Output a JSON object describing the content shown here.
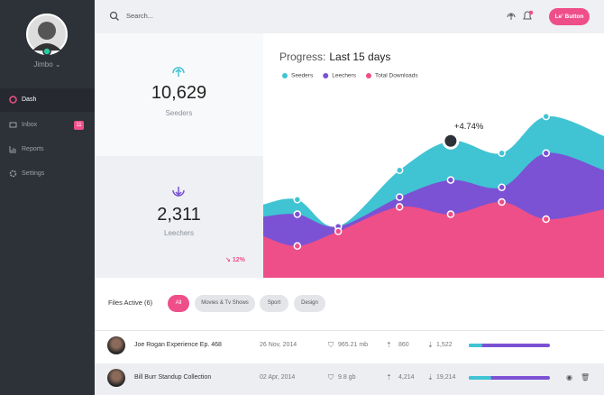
{
  "sidebar": {
    "user": "Jimbo",
    "nav": [
      {
        "label": "Dash"
      },
      {
        "label": "Inbox",
        "badge": "11"
      },
      {
        "label": "Reports"
      },
      {
        "label": "Settings"
      }
    ]
  },
  "topbar": {
    "search": "Search...",
    "button": "Le' Button"
  },
  "stats": [
    {
      "value": "10,629",
      "label": "Seeders"
    },
    {
      "value": "2,311",
      "label": "Leechers",
      "change": "12%"
    }
  ],
  "chart_data": {
    "type": "area",
    "title": "Progress:",
    "subtitle": "Last 15 days",
    "x": [
      0,
      10,
      22,
      40,
      55,
      70,
      83,
      100
    ],
    "xlim": [
      0,
      100
    ],
    "ylim": [
      0,
      100
    ],
    "series": [
      {
        "name": "Seeders",
        "color": "#40c4d3",
        "values": [
          30,
          32,
          21,
          44,
          56,
          51,
          66,
          58
        ]
      },
      {
        "name": "Leechers",
        "color": "#7b52d4",
        "values": [
          25,
          26,
          21,
          33,
          40,
          37,
          51,
          44
        ]
      },
      {
        "name": "Total Downloads",
        "color": "#ee4f88",
        "values": [
          17,
          13,
          19,
          29,
          26,
          31,
          24,
          28
        ]
      }
    ],
    "annotation": {
      "text": "+4.74%",
      "x": 55
    }
  },
  "files": {
    "title": "Files Active (6)",
    "filters": [
      "All",
      "Movies & Tv Shows",
      "Sport",
      "Design"
    ],
    "rows": [
      {
        "name": "Joe Rogan Experience Ep. 468",
        "date": "26 Nov, 2014",
        "size": "965.21 mb",
        "up": "860",
        "down": "1,522",
        "progress": 17
      },
      {
        "name": "Bill Burr Standup Collection",
        "date": "02 Apr, 2014",
        "size": "9.8 gb",
        "up": "4,214",
        "down": "19,214",
        "progress": 28
      }
    ]
  }
}
